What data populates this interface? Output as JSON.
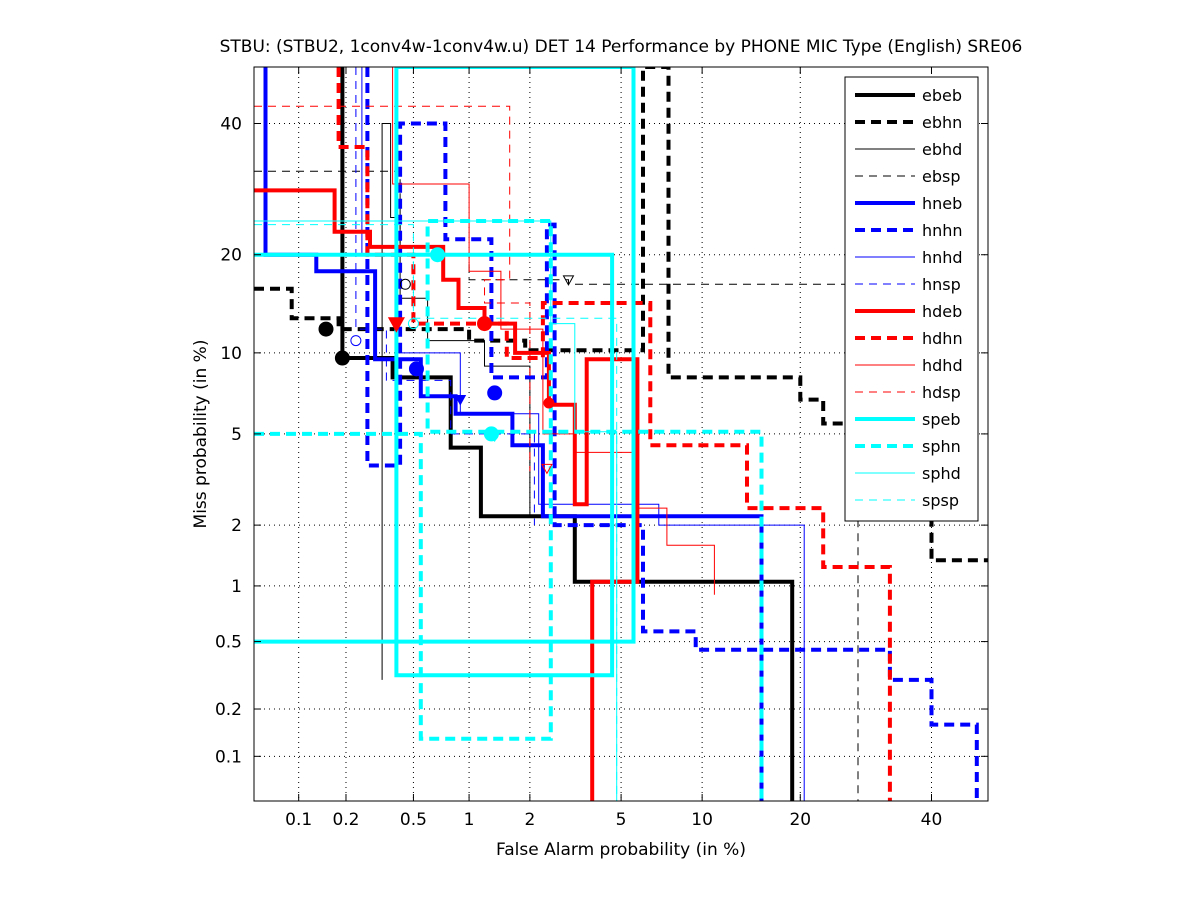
{
  "chart_data": {
    "type": "line",
    "title": "STBU: (STBU2, 1conv4w-1conv4w.u) DET 14 Performance by PHONE MIC Type (English) SRE06",
    "xlabel": "False Alarm probability (in %)",
    "ylabel": "Miss probability (in %)",
    "scale": "normal-deviate (probit) on both axes",
    "xlim": [
      0.05,
      50
    ],
    "ylim": [
      0.05,
      50
    ],
    "x_ticks": [
      0.1,
      0.2,
      0.5,
      1,
      2,
      5,
      10,
      20,
      40
    ],
    "x_tick_labels": [
      "0.1",
      "0.2",
      "0.5",
      "1",
      "2",
      "5",
      "10",
      "20",
      "40"
    ],
    "y_ticks": [
      0.1,
      0.2,
      0.5,
      1,
      2,
      5,
      10,
      20,
      40
    ],
    "y_tick_labels": [
      "0.1",
      "0.2",
      "0.5",
      "1",
      "2",
      "5",
      "10",
      "20",
      "40"
    ],
    "grid": true,
    "legend_position": "top-right",
    "series": [
      {
        "name": "ebeb",
        "color": "#000000",
        "dash": "solid",
        "width": 4,
        "x": [
          0.19,
          0.19,
          0.19,
          0.38,
          0.38,
          0.8,
          0.8,
          1.15,
          1.15,
          2.1,
          2.1,
          3.2,
          3.2,
          19,
          19
        ],
        "y": [
          50,
          12,
          9.6,
          9.6,
          8.2,
          8.2,
          4.4,
          4.4,
          2.2,
          2.2,
          2.2,
          2.2,
          1.05,
          1.05,
          0.05
        ],
        "marker": {
          "x": 0.19,
          "y": 9.6,
          "shape": "circle",
          "filled": true
        }
      },
      {
        "name": "ebhn",
        "color": "#000000",
        "dash": "dash",
        "width": 4,
        "x": [
          0.05,
          0.09,
          0.09,
          0.18,
          0.18,
          1.0,
          1.0,
          1.9,
          1.9,
          6.1,
          6.1,
          7.6,
          7.6,
          20,
          20,
          23,
          23,
          40,
          40,
          50
        ],
        "y": [
          16,
          16,
          13,
          13,
          12,
          12,
          11,
          11,
          10.2,
          10.2,
          50,
          50,
          8.2,
          8.2,
          6.8,
          6.8,
          5.5,
          5.5,
          1.35,
          1.35
        ],
        "marker": {
          "x": 0.15,
          "y": 12,
          "shape": "circle",
          "filled": true
        }
      },
      {
        "name": "ebhd",
        "color": "#000000",
        "dash": "solid",
        "width": 1,
        "x": [
          0.33,
          0.33,
          0.37,
          0.37,
          0.42,
          0.42,
          0.6,
          0.6,
          1.2,
          1.2,
          2.0,
          2.0
        ],
        "y": [
          0.3,
          40,
          40,
          25,
          25,
          15,
          15,
          11,
          11,
          9,
          9,
          2.2
        ],
        "marker": {
          "x": 0.45,
          "y": 16.5,
          "shape": "circle",
          "filled": false
        }
      },
      {
        "name": "ebsp",
        "color": "#000000",
        "dash": "dash",
        "width": 1,
        "x": [
          0.05,
          0.42,
          0.42,
          1.0,
          1.0,
          3.0,
          3.0,
          4.2,
          4.2,
          28,
          28
        ],
        "y": [
          32,
          32,
          20,
          20,
          17,
          17,
          16.5,
          16.5,
          16.5,
          16.5,
          0.05
        ],
        "marker": {
          "x": 3.0,
          "y": 17,
          "shape": "triangle-down",
          "filled": false
        }
      },
      {
        "name": "hneb",
        "color": "#0000ff",
        "dash": "solid",
        "width": 4,
        "x": [
          0.06,
          0.06,
          0.06,
          0.13,
          0.13,
          0.3,
          0.3,
          0.55,
          0.55,
          0.85,
          0.85,
          1.65,
          1.65,
          2.3,
          2.3,
          15.5,
          15.5
        ],
        "y": [
          50,
          50,
          20,
          20,
          18,
          18,
          9.5,
          9.5,
          7,
          7,
          6,
          6,
          4.5,
          4.5,
          2.2,
          2.2,
          0.05
        ],
        "marker": {
          "x": 0.52,
          "y": 8.8,
          "shape": "circle",
          "filled": true
        }
      },
      {
        "name": "hnhn",
        "color": "#0000ff",
        "dash": "dash",
        "width": 4,
        "x": [
          0.27,
          0.27,
          0.27,
          0.42,
          0.42,
          0.75,
          0.75,
          1.3,
          1.3,
          2.4,
          2.4,
          2.6,
          2.6,
          6.1,
          6.1,
          9.5,
          9.5,
          33,
          33,
          40,
          40,
          48,
          48
        ],
        "y": [
          50,
          50,
          3.7,
          3.7,
          40,
          40,
          22,
          22,
          8.2,
          8.2,
          24,
          24,
          2.0,
          2.0,
          0.57,
          0.57,
          0.45,
          0.45,
          0.3,
          0.3,
          0.16,
          0.16,
          0.05
        ],
        "marker": {
          "x": 1.35,
          "y": 7.2,
          "shape": "circle",
          "filled": true
        }
      },
      {
        "name": "hnhd",
        "color": "#0000ff",
        "dash": "solid",
        "width": 1,
        "x": [
          0.25,
          0.25,
          0.4,
          0.4,
          0.9,
          0.9,
          2.2,
          2.2,
          7.0,
          7.0,
          20.5,
          20.5
        ],
        "y": [
          50,
          20,
          20,
          10,
          10,
          6,
          6,
          2.5,
          2.5,
          2.0,
          2.0,
          0.05
        ],
        "marker": {
          "x": 0.9,
          "y": 6.8,
          "shape": "triangle-down",
          "filled": true
        }
      },
      {
        "name": "hnsp",
        "color": "#0000ff",
        "dash": "dash",
        "width": 1,
        "x": [
          0.23,
          0.23,
          0.35,
          0.35,
          0.8,
          0.8,
          2.1,
          2.1
        ],
        "y": [
          50,
          12,
          12,
          8,
          8,
          5,
          5,
          2.0
        ],
        "marker": {
          "x": 0.23,
          "y": 11,
          "shape": "circle",
          "filled": false
        }
      },
      {
        "name": "hdeb",
        "color": "#ff0000",
        "dash": "solid",
        "width": 4,
        "x": [
          0.05,
          0.17,
          0.17,
          0.28,
          0.28,
          0.73,
          0.73,
          0.88,
          0.88,
          1.2,
          1.2,
          1.7,
          1.7,
          2.45,
          2.45,
          3.2,
          3.2,
          3.6,
          3.6,
          5.8,
          5.8,
          3.8,
          3.8
        ],
        "y": [
          29,
          29,
          23,
          23,
          21,
          21,
          17,
          17,
          14,
          14,
          12.5,
          12.5,
          10,
          10,
          6.5,
          6.5,
          2.5,
          2.5,
          9.5,
          9.5,
          1.05,
          1.05,
          0.05
        ],
        "marker": {
          "x": 1.2,
          "y": 12.5,
          "shape": "circle",
          "filled": true
        }
      },
      {
        "name": "hdhn",
        "color": "#ff0000",
        "dash": "dash",
        "width": 4,
        "x": [
          0.18,
          0.18,
          0.18,
          0.27,
          0.27,
          0.5,
          0.5,
          1.55,
          1.55,
          2.3,
          2.3,
          6.5,
          6.5,
          14,
          14,
          23,
          23,
          33,
          33
        ],
        "y": [
          50,
          50,
          36,
          36,
          20,
          20,
          12.5,
          12.5,
          9.6,
          9.6,
          14.5,
          14.5,
          4.5,
          4.5,
          2.4,
          2.4,
          1.25,
          1.25,
          0.05
        ],
        "marker": {
          "x": 0.4,
          "y": 12.5,
          "shape": "triangle-down",
          "filled": true
        }
      },
      {
        "name": "hdhd",
        "color": "#ff0000",
        "dash": "solid",
        "width": 1,
        "x": [
          0.38,
          0.38,
          1.0,
          1.0,
          1.45,
          1.45,
          2.3,
          2.3,
          3.2,
          3.2,
          5.8,
          5.8,
          7.5,
          7.5,
          11,
          11
        ],
        "y": [
          50,
          30,
          30,
          18,
          18,
          12,
          12,
          5,
          5,
          4.2,
          4.2,
          2.4,
          2.4,
          1.6,
          1.6,
          0.9
        ],
        "marker": {
          "x": 2.45,
          "y": 6.6,
          "shape": "circle",
          "filled": true
        }
      },
      {
        "name": "hdsp",
        "color": "#ff0000",
        "dash": "dash",
        "width": 1,
        "x": [
          0.05,
          1.6,
          1.6,
          1.2,
          1.2,
          2.0,
          2.0
        ],
        "y": [
          43,
          43,
          17,
          17,
          14.5,
          14.5,
          3.5
        ],
        "marker": {
          "x": 2.4,
          "y": 3.6,
          "shape": "triangle-down",
          "filled": false
        }
      },
      {
        "name": "speb",
        "color": "#00ffff",
        "dash": "solid",
        "width": 4,
        "x": [
          0.05,
          4.6,
          4.6,
          0.4,
          0.4,
          5.6,
          5.6,
          0.05
        ],
        "y": [
          20,
          20,
          0.32,
          0.32,
          50,
          50,
          0.5,
          0.5
        ],
        "marker": {
          "x": 0.68,
          "y": 20,
          "shape": "circle",
          "filled": true
        }
      },
      {
        "name": "sphn",
        "color": "#00ffff",
        "dash": "dash",
        "width": 4,
        "x": [
          0.05,
          0.55,
          0.55,
          2.5,
          2.5,
          0.6,
          0.6,
          15.5,
          15.5
        ],
        "y": [
          5,
          5,
          0.13,
          0.13,
          24.5,
          24.5,
          5.1,
          5.1,
          0.05
        ],
        "marker": {
          "x": 1.3,
          "y": 5,
          "shape": "circle",
          "filled": true
        }
      },
      {
        "name": "sphd",
        "color": "#00ffff",
        "dash": "solid",
        "width": 1,
        "x": [
          0.05,
          2.5,
          2.5,
          3.2,
          3.2,
          4.8,
          4.8
        ],
        "y": [
          24.5,
          24.5,
          12.5,
          12.5,
          5.1,
          5.1,
          0.05
        ],
        "marker": {
          "x": 1.35,
          "y": 4.9,
          "shape": "triangle-down",
          "filled": true
        }
      },
      {
        "name": "spsp",
        "color": "#00ffff",
        "dash": "dash",
        "width": 1,
        "x": [
          0.05,
          0.5,
          0.5,
          4.8,
          4.8
        ],
        "y": [
          24,
          24,
          13,
          13,
          0.05
        ],
        "marker": {
          "x": 0.5,
          "y": 12.5,
          "shape": "circle",
          "filled": false
        }
      }
    ]
  }
}
